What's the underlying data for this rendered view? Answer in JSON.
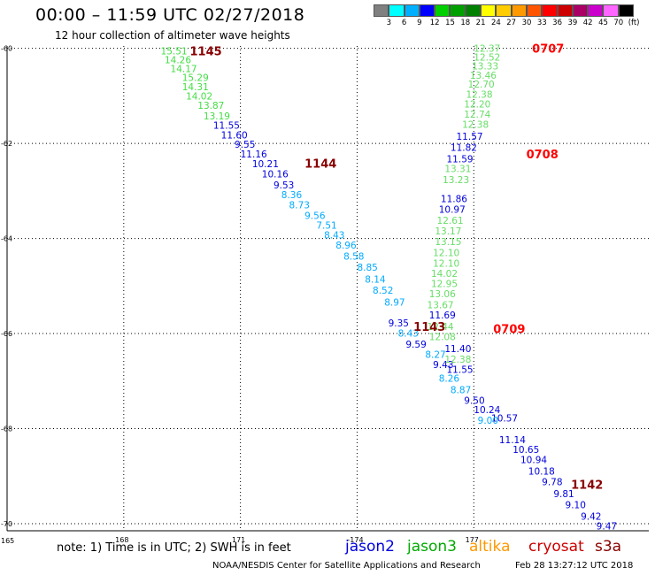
{
  "header": {
    "title": "00:00 – 11:59 UTC 02/27/2018",
    "subtitle": "12 hour collection of altimeter wave heights"
  },
  "colorbar": {
    "colors": [
      "#808080",
      "#00ffff",
      "#00b0ff",
      "#0000ff",
      "#00d000",
      "#00a000",
      "#008000",
      "#ffff00",
      "#ffcc00",
      "#ff9900",
      "#ff5500",
      "#ff0000",
      "#cc0000",
      "#aa0066",
      "#cc00cc",
      "#ff66ff",
      "#000000"
    ],
    "labels": [
      "3",
      "6",
      "9",
      "12",
      "15",
      "18",
      "21",
      "24",
      "27",
      "30",
      "33",
      "36",
      "39",
      "42",
      "45",
      "70",
      "(ft)"
    ]
  },
  "footer": {
    "note": "note: 1) Time is in UTC; 2) SWH is in feet",
    "credit": "NOAA/NESDIS Center for Satellite Applications and Research",
    "timestamp": "Feb 28 13:27:12 UTC 2018"
  },
  "satellites": [
    {
      "name": "jason2",
      "color": "#0000dd"
    },
    {
      "name": "jason3",
      "color": "#00aa00"
    },
    {
      "name": "altika",
      "color": "#ff9900"
    },
    {
      "name": "cryosat",
      "color": "#cc0000"
    },
    {
      "name": "s3a",
      "color": "#880000"
    }
  ],
  "chart_data": {
    "type": "scatter",
    "x_ticks": [
      "165",
      "168",
      "171",
      "-174",
      "177"
    ],
    "y_ticks": [
      "-60",
      "-62",
      "-64",
      "-66",
      "-68",
      "-70"
    ],
    "time_labels": [
      {
        "text": "1145",
        "lon": 169.7,
        "lat": -60.05,
        "color": "#880000"
      },
      {
        "text": "1144",
        "lon": 172.65,
        "lat": -62.42,
        "color": "#880000"
      },
      {
        "text": "1143",
        "lon": 175.45,
        "lat": -65.85,
        "color": "#880000"
      },
      {
        "text": "1142",
        "lon": 179.5,
        "lat": -69.17,
        "color": "#880000"
      },
      {
        "text": "0707",
        "lon": 178.5,
        "lat": -60.0,
        "color": "#ff0000"
      },
      {
        "text": "0708",
        "lon": 178.35,
        "lat": -62.22,
        "color": "#ff0000"
      },
      {
        "text": "0709",
        "lon": 177.5,
        "lat": -65.9,
        "color": "#ff0000"
      }
    ],
    "series": [
      {
        "color": "#44dd44",
        "points": [
          {
            "lon": 168.95,
            "lat": -60.05,
            "v": "15.51"
          },
          {
            "lon": 169.05,
            "lat": -60.24,
            "v": "14.26"
          },
          {
            "lon": 169.2,
            "lat": -60.42,
            "v": "14.17"
          },
          {
            "lon": 169.5,
            "lat": -60.61,
            "v": "15.29"
          },
          {
            "lon": 169.5,
            "lat": -60.81,
            "v": "14.31"
          },
          {
            "lon": 169.6,
            "lat": -61.0,
            "v": "14.02"
          },
          {
            "lon": 169.9,
            "lat": -61.2,
            "v": "13.87"
          },
          {
            "lon": 170.05,
            "lat": -61.42,
            "v": "13.19"
          }
        ]
      },
      {
        "color": "#0000dd",
        "points": [
          {
            "lon": 170.3,
            "lat": -61.62,
            "v": "11.55"
          },
          {
            "lon": 170.5,
            "lat": -61.82,
            "v": "11.60"
          },
          {
            "lon": 170.85,
            "lat": -62.02,
            "v": "9.55"
          },
          {
            "lon": 171.0,
            "lat": -62.22,
            "v": "11.16"
          },
          {
            "lon": 171.3,
            "lat": -62.43,
            "v": "10.21"
          },
          {
            "lon": 171.55,
            "lat": -62.64,
            "v": "10.16"
          },
          {
            "lon": 171.85,
            "lat": -62.87,
            "v": "9.53"
          },
          {
            "lon": 174.8,
            "lat": -65.78,
            "v": "9.35"
          },
          {
            "lon": 175.25,
            "lat": -66.22,
            "v": "9.59"
          },
          {
            "lon": 175.95,
            "lat": -66.65,
            "v": "9.43"
          },
          {
            "lon": 177.45,
            "lat": -67.78,
            "v": "10.57"
          },
          {
            "lon": 177.65,
            "lat": -68.23,
            "v": "11.14"
          },
          {
            "lon": 178.0,
            "lat": -68.44,
            "v": "10.65"
          },
          {
            "lon": 178.2,
            "lat": -68.65,
            "v": "10.94"
          },
          {
            "lon": 178.4,
            "lat": -68.89,
            "v": "10.18"
          },
          {
            "lon": 178.75,
            "lat": -69.12,
            "v": "9.78"
          },
          {
            "lon": 179.05,
            "lat": -69.37,
            "v": "9.81"
          },
          {
            "lon": 179.35,
            "lat": -69.6,
            "v": "9.10"
          },
          {
            "lon": 179.75,
            "lat": -69.84,
            "v": "9.42"
          },
          {
            "lon": 180.15,
            "lat": -70.05,
            "v": "9.47"
          },
          {
            "lon": 176.55,
            "lat": -61.85,
            "v": "11.57"
          },
          {
            "lon": 176.4,
            "lat": -62.08,
            "v": "11.82"
          },
          {
            "lon": 176.3,
            "lat": -62.32,
            "v": "11.59"
          },
          {
            "lon": 176.15,
            "lat": -63.16,
            "v": "11.86"
          },
          {
            "lon": 176.1,
            "lat": -63.38,
            "v": "10.97"
          },
          {
            "lon": 175.85,
            "lat": -65.61,
            "v": "11.69"
          },
          {
            "lon": 176.25,
            "lat": -66.32,
            "v": "11.40"
          },
          {
            "lon": 176.3,
            "lat": -66.75,
            "v": "11.55"
          },
          {
            "lon": 176.75,
            "lat": -67.4,
            "v": "9.50"
          },
          {
            "lon": 177.0,
            "lat": -67.6,
            "v": "10.24"
          }
        ]
      },
      {
        "color": "#00aaff",
        "points": [
          {
            "lon": 172.05,
            "lat": -63.08,
            "v": "8.36"
          },
          {
            "lon": 172.25,
            "lat": -63.29,
            "v": "8.73"
          },
          {
            "lon": 172.65,
            "lat": -63.51,
            "v": "9.56"
          },
          {
            "lon": 172.95,
            "lat": -63.72,
            "v": "7.51"
          },
          {
            "lon": 173.15,
            "lat": -63.92,
            "v": "8.43"
          },
          {
            "lon": 173.45,
            "lat": -64.14,
            "v": "8.96"
          },
          {
            "lon": 173.65,
            "lat": -64.37,
            "v": "8.58"
          },
          {
            "lon": 174.0,
            "lat": -64.6,
            "v": "8.85"
          },
          {
            "lon": 174.2,
            "lat": -64.85,
            "v": "8.14"
          },
          {
            "lon": 174.4,
            "lat": -65.09,
            "v": "8.52"
          },
          {
            "lon": 174.7,
            "lat": -65.34,
            "v": "8.97"
          },
          {
            "lon": 175.05,
            "lat": -65.99,
            "v": "8.43"
          },
          {
            "lon": 175.75,
            "lat": -66.44,
            "v": "8.27"
          },
          {
            "lon": 176.1,
            "lat": -66.94,
            "v": "8.26"
          },
          {
            "lon": 176.4,
            "lat": -67.18,
            "v": "8.87"
          },
          {
            "lon": 177.1,
            "lat": -67.82,
            "v": "9.00"
          }
        ]
      },
      {
        "color": "#66dd66",
        "points": [
          {
            "lon": 177.0,
            "lat": -60.0,
            "v": "12.37"
          },
          {
            "lon": 177.0,
            "lat": -60.18,
            "v": "12.52"
          },
          {
            "lon": 176.95,
            "lat": -60.37,
            "v": "13.33"
          },
          {
            "lon": 176.9,
            "lat": -60.56,
            "v": "13.46"
          },
          {
            "lon": 176.85,
            "lat": -60.75,
            "v": "12.70"
          },
          {
            "lon": 176.8,
            "lat": -60.96,
            "v": "12.38"
          },
          {
            "lon": 176.75,
            "lat": -61.17,
            "v": "12.20"
          },
          {
            "lon": 176.75,
            "lat": -61.38,
            "v": "12.74"
          },
          {
            "lon": 176.7,
            "lat": -61.6,
            "v": "12.38"
          },
          {
            "lon": 176.25,
            "lat": -62.53,
            "v": "13.31"
          },
          {
            "lon": 176.2,
            "lat": -62.76,
            "v": "13.23"
          },
          {
            "lon": 176.05,
            "lat": -63.62,
            "v": "12.61"
          },
          {
            "lon": 176.0,
            "lat": -63.84,
            "v": "13.17"
          },
          {
            "lon": 176.0,
            "lat": -64.06,
            "v": "13.15"
          },
          {
            "lon": 175.95,
            "lat": -64.3,
            "v": "12.10"
          },
          {
            "lon": 175.95,
            "lat": -64.52,
            "v": "12.10"
          },
          {
            "lon": 175.9,
            "lat": -64.73,
            "v": "14.02"
          },
          {
            "lon": 175.9,
            "lat": -64.95,
            "v": "12.95"
          },
          {
            "lon": 175.85,
            "lat": -65.16,
            "v": "13.06"
          },
          {
            "lon": 175.8,
            "lat": -65.39,
            "v": "13.67"
          },
          {
            "lon": 175.8,
            "lat": -65.85,
            "v": "12.44"
          },
          {
            "lon": 175.85,
            "lat": -66.06,
            "v": "12.08"
          },
          {
            "lon": 176.25,
            "lat": -66.54,
            "v": "12.38"
          }
        ]
      }
    ]
  }
}
